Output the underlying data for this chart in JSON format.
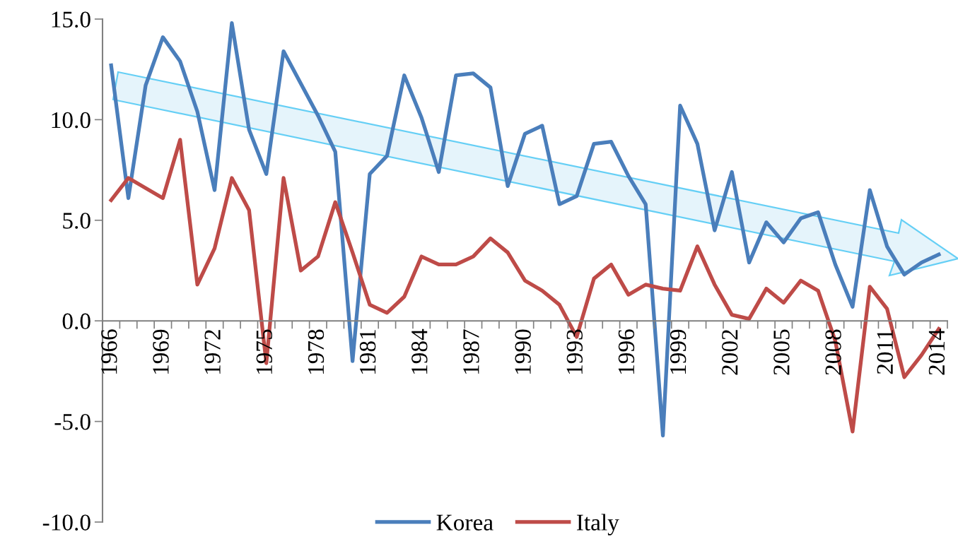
{
  "chart_data": {
    "type": "line",
    "categories": [
      "1966",
      null,
      null,
      "1969",
      null,
      null,
      "1972",
      null,
      null,
      "1975",
      null,
      null,
      "1978",
      null,
      null,
      "1981",
      null,
      null,
      "1984",
      null,
      null,
      "1987",
      null,
      null,
      "1990",
      null,
      null,
      "1993",
      null,
      null,
      "1996",
      null,
      null,
      "1999",
      null,
      null,
      "2002",
      null,
      null,
      "2005",
      null,
      null,
      "2008",
      null,
      null,
      "2011",
      null,
      null,
      "2014"
    ],
    "series": [
      {
        "name": "Korea",
        "color": "#4a7ebb",
        "values": [
          12.7,
          6.1,
          11.7,
          14.1,
          12.9,
          10.4,
          6.5,
          14.8,
          9.5,
          7.3,
          13.4,
          11.8,
          10.2,
          8.4,
          -2.0,
          7.3,
          8.2,
          12.2,
          10.1,
          7.4,
          12.2,
          12.3,
          11.6,
          6.7,
          9.3,
          9.7,
          5.8,
          6.2,
          8.8,
          8.9,
          7.2,
          5.8,
          -5.7,
          10.7,
          8.8,
          4.5,
          7.4,
          2.9,
          4.9,
          3.9,
          5.1,
          5.4,
          2.8,
          0.7,
          6.5,
          3.7,
          2.3,
          2.9,
          3.3
        ]
      },
      {
        "name": "Italy",
        "color": "#be4b48",
        "values": [
          6.0,
          7.1,
          6.6,
          6.1,
          9.0,
          1.8,
          3.6,
          7.1,
          5.5,
          -2.1,
          7.1,
          2.5,
          3.2,
          5.9,
          3.4,
          0.8,
          0.4,
          1.2,
          3.2,
          2.8,
          2.8,
          3.2,
          4.1,
          3.4,
          2.0,
          1.5,
          0.8,
          -0.8,
          2.1,
          2.8,
          1.3,
          1.8,
          1.6,
          1.5,
          3.7,
          1.8,
          0.3,
          0.1,
          1.6,
          0.9,
          2.0,
          1.5,
          -1.0,
          -5.5,
          1.7,
          0.6,
          -2.8,
          -1.7,
          -0.4
        ]
      }
    ],
    "ylim": [
      -10,
      15
    ],
    "yticks": [
      {
        "value": -10,
        "label": "-10.0"
      },
      {
        "value": -5,
        "label": "-5.0"
      },
      {
        "value": 0,
        "label": "0.0"
      },
      {
        "value": 5,
        "label": "5.0"
      },
      {
        "value": 10,
        "label": "10.0"
      },
      {
        "value": 15,
        "label": "15.0"
      }
    ],
    "legend": "bottom",
    "grid": false,
    "marker": "none",
    "line_style": "solid"
  }
}
